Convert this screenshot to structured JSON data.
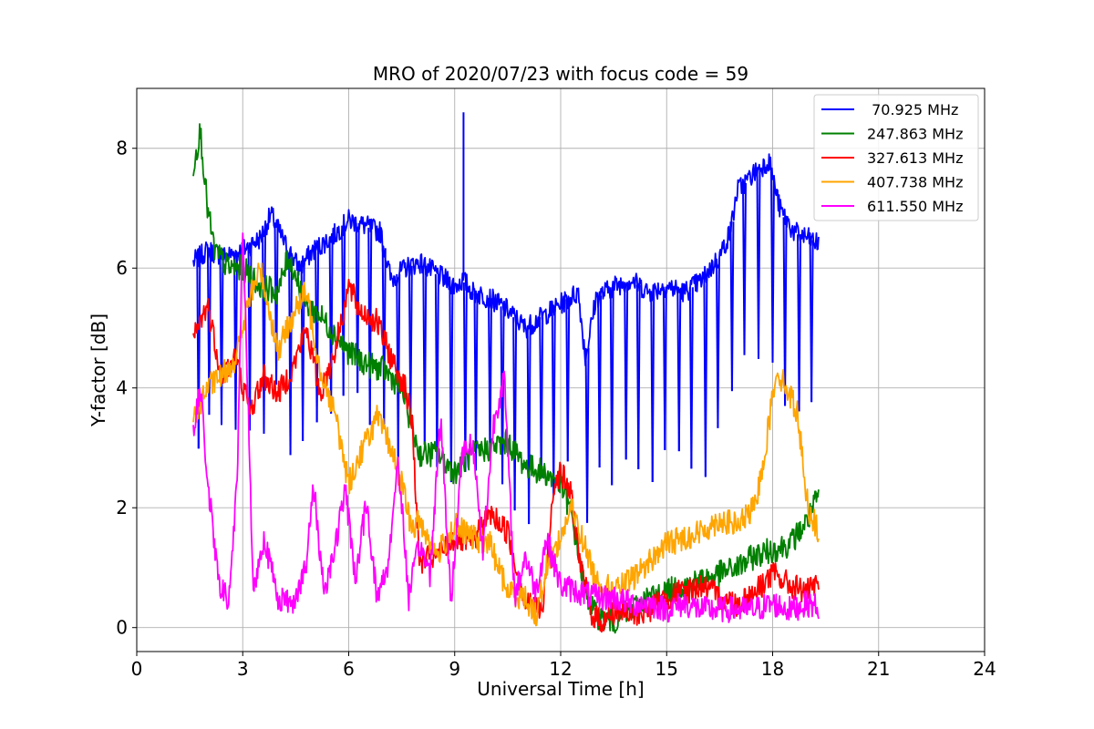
{
  "chart_data": {
    "type": "line",
    "title": "MRO of 2020/07/23 with focus code = 59",
    "xlabel": "Universal Time [h]",
    "ylabel": "Y-factor [dB]",
    "xlim": [
      0,
      24
    ],
    "ylim": [
      -0.4,
      9.0
    ],
    "xticks": [
      0,
      3,
      6,
      9,
      12,
      15,
      18,
      21,
      24
    ],
    "yticks": [
      0,
      2,
      4,
      6,
      8
    ],
    "grid": true,
    "legend_position": "top-right",
    "series": [
      {
        "name": " 70.925 MHz",
        "color": "#0000ff",
        "x": [
          1.6,
          2.0,
          2.5,
          3.0,
          3.5,
          3.8,
          4.2,
          4.6,
          5.0,
          5.5,
          6.0,
          6.5,
          6.9,
          7.2,
          7.6,
          8.0,
          8.5,
          9.0,
          9.25,
          9.5,
          10.0,
          10.5,
          11.0,
          11.5,
          12.0,
          12.5,
          12.7,
          13.0,
          13.5,
          14.0,
          14.5,
          15.0,
          15.5,
          16.0,
          16.5,
          16.8,
          17.0,
          17.5,
          17.9,
          18.2,
          18.6,
          19.0,
          19.3
        ],
        "y": [
          6.1,
          6.3,
          6.2,
          6.3,
          6.5,
          6.9,
          6.4,
          6.0,
          6.3,
          6.5,
          6.8,
          6.7,
          6.6,
          5.8,
          6.0,
          6.1,
          5.9,
          5.7,
          5.8,
          5.6,
          5.5,
          5.3,
          5.0,
          5.2,
          5.4,
          5.6,
          4.5,
          5.5,
          5.7,
          5.8,
          5.6,
          5.7,
          5.6,
          5.8,
          6.2,
          6.6,
          7.3,
          7.6,
          7.8,
          7.0,
          6.6,
          6.5,
          6.4
        ],
        "dips": [
          1.75,
          2.05,
          2.4,
          2.8,
          3.2,
          3.6,
          3.95,
          4.35,
          4.7,
          5.1,
          5.5,
          5.85,
          6.25,
          6.6,
          7.0,
          7.4,
          7.75,
          8.15,
          8.5,
          8.9,
          9.3,
          9.6,
          10.0,
          10.35,
          10.7,
          11.1,
          11.45,
          11.8,
          12.2,
          12.75,
          13.1,
          13.45,
          13.85,
          14.2,
          14.6,
          14.95,
          15.35,
          15.7,
          16.1,
          16.45,
          16.85,
          17.2,
          17.6,
          18.0,
          18.35,
          18.75,
          19.1
        ]
      },
      {
        "name": "247.863 MHz",
        "color": "#008000",
        "x": [
          1.6,
          1.8,
          2.0,
          2.2,
          2.6,
          3.0,
          3.5,
          4.0,
          4.3,
          4.8,
          5.2,
          5.6,
          6.0,
          6.5,
          7.0,
          7.5,
          8.0,
          8.5,
          9.0,
          9.5,
          10.0,
          10.5,
          11.0,
          11.5,
          12.0,
          12.3,
          12.7,
          13.0,
          13.5,
          14.0,
          14.5,
          15.0,
          15.5,
          16.0,
          16.5,
          17.0,
          17.5,
          18.0,
          18.5,
          19.0,
          19.3
        ],
        "y": [
          7.7,
          8.3,
          7.0,
          6.3,
          6.0,
          6.0,
          5.7,
          5.6,
          6.2,
          5.4,
          5.2,
          4.9,
          4.6,
          4.4,
          4.3,
          4.0,
          2.9,
          2.9,
          2.6,
          2.9,
          3.0,
          3.1,
          2.7,
          2.6,
          2.4,
          1.9,
          0.6,
          0.2,
          0.1,
          0.3,
          0.5,
          0.6,
          0.7,
          0.8,
          0.9,
          1.0,
          1.2,
          1.3,
          1.4,
          1.8,
          2.2
        ]
      },
      {
        "name": "327.613 MHz",
        "color": "#ff0000",
        "x": [
          1.6,
          2.0,
          2.4,
          2.8,
          3.2,
          3.6,
          4.0,
          4.4,
          4.8,
          5.2,
          5.6,
          6.0,
          6.3,
          6.8,
          7.2,
          7.6,
          7.8,
          8.0,
          8.5,
          9.0,
          9.5,
          10.0,
          10.5,
          11.0,
          11.5,
          11.8,
          12.0,
          12.3,
          12.6,
          12.9,
          13.2,
          13.6,
          14.0,
          14.5,
          15.0,
          15.5,
          16.0,
          16.5,
          17.0,
          17.5,
          18.0,
          18.5,
          19.0,
          19.3
        ],
        "y": [
          4.8,
          5.4,
          4.2,
          4.5,
          3.6,
          4.2,
          3.9,
          4.3,
          5.0,
          3.9,
          4.6,
          5.7,
          5.3,
          5.1,
          4.5,
          4.0,
          3.4,
          1.1,
          1.2,
          1.5,
          1.4,
          1.9,
          1.6,
          0.4,
          0.3,
          2.4,
          2.6,
          2.2,
          0.9,
          0.2,
          0.1,
          0.3,
          0.2,
          0.3,
          0.5,
          0.6,
          0.7,
          0.5,
          0.4,
          0.6,
          0.9,
          0.7,
          0.6,
          0.7
        ]
      },
      {
        "name": "407.738 MHz",
        "color": "#ffa500",
        "x": [
          1.6,
          2.0,
          2.4,
          2.8,
          3.2,
          3.5,
          4.0,
          4.4,
          4.8,
          5.2,
          5.6,
          6.0,
          6.4,
          6.8,
          7.2,
          7.5,
          7.8,
          8.0,
          8.5,
          9.0,
          9.5,
          10.0,
          10.5,
          11.0,
          11.3,
          11.6,
          12.0,
          12.3,
          12.6,
          13.0,
          13.5,
          14.0,
          14.5,
          15.0,
          15.5,
          16.0,
          16.5,
          17.0,
          17.5,
          17.8,
          18.1,
          18.4,
          18.7,
          19.0,
          19.3
        ],
        "y": [
          3.5,
          4.0,
          4.2,
          4.5,
          5.5,
          6.0,
          4.6,
          5.2,
          5.6,
          4.3,
          3.6,
          2.4,
          3.0,
          3.5,
          3.0,
          2.4,
          1.6,
          1.8,
          1.2,
          1.7,
          1.5,
          1.4,
          0.6,
          0.5,
          0.2,
          1.0,
          1.5,
          2.0,
          1.5,
          0.8,
          0.6,
          0.8,
          1.1,
          1.4,
          1.5,
          1.6,
          1.8,
          1.7,
          2.0,
          3.0,
          4.3,
          4.0,
          3.6,
          2.0,
          1.6
        ]
      },
      {
        "name": "611.550 MHz",
        "color": "#ff00ff",
        "x": [
          1.6,
          1.8,
          2.0,
          2.3,
          2.6,
          2.85,
          3.0,
          3.3,
          3.6,
          4.0,
          4.4,
          4.8,
          5.0,
          5.3,
          5.6,
          5.9,
          6.2,
          6.5,
          6.8,
          7.1,
          7.4,
          7.7,
          8.0,
          8.3,
          8.6,
          8.9,
          9.2,
          9.5,
          9.8,
          10.1,
          10.4,
          10.7,
          11.0,
          11.3,
          11.6,
          12.0,
          12.5,
          13.0,
          13.5,
          14.0,
          14.5,
          15.0,
          15.5,
          16.0,
          16.5,
          17.0,
          17.5,
          18.0,
          18.5,
          19.0,
          19.3
        ],
        "y": [
          3.2,
          4.0,
          2.5,
          0.8,
          0.4,
          2.5,
          6.8,
          0.6,
          1.5,
          0.5,
          0.4,
          1.0,
          2.4,
          0.6,
          1.3,
          2.3,
          0.8,
          2.1,
          0.5,
          1.0,
          2.8,
          0.5,
          1.4,
          0.9,
          3.5,
          0.4,
          2.9,
          3.1,
          1.3,
          3.4,
          4.2,
          0.5,
          1.2,
          0.6,
          1.5,
          0.7,
          0.6,
          0.5,
          0.5,
          0.4,
          0.4,
          0.3,
          0.4,
          0.3,
          0.3,
          0.3,
          0.3,
          0.4,
          0.3,
          0.4,
          0.35
        ]
      }
    ]
  }
}
